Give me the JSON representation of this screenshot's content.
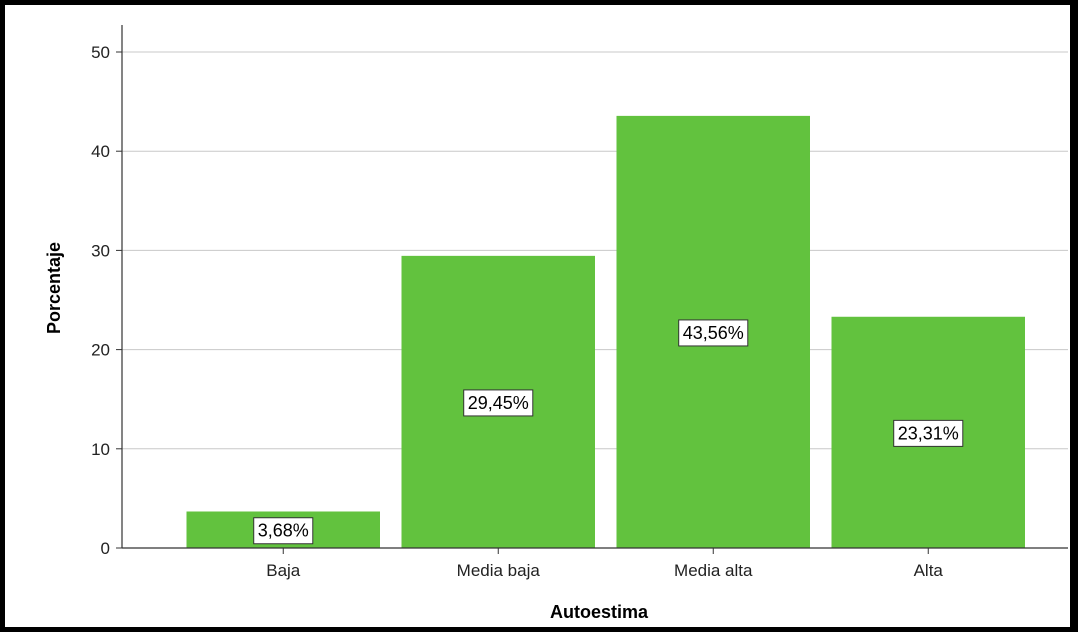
{
  "chart_data": {
    "type": "bar",
    "title": "",
    "xlabel": "Autoestima",
    "ylabel": "Porcentaje",
    "categories": [
      "Baja",
      "Media baja",
      "Media alta",
      "Alta"
    ],
    "values": [
      3.68,
      29.45,
      43.56,
      23.31
    ],
    "data_labels": [
      "3,68%",
      "29,45%",
      "43,56%",
      "23,31%"
    ],
    "ylim": [
      0,
      50
    ],
    "yticks": [
      0,
      10,
      20,
      30,
      40,
      50
    ],
    "ytick_labels": [
      "0",
      "10",
      "20",
      "30",
      "40",
      "50"
    ],
    "grid": true,
    "bar_color": "#62c23e",
    "grid_color": "#c8c8c8"
  }
}
